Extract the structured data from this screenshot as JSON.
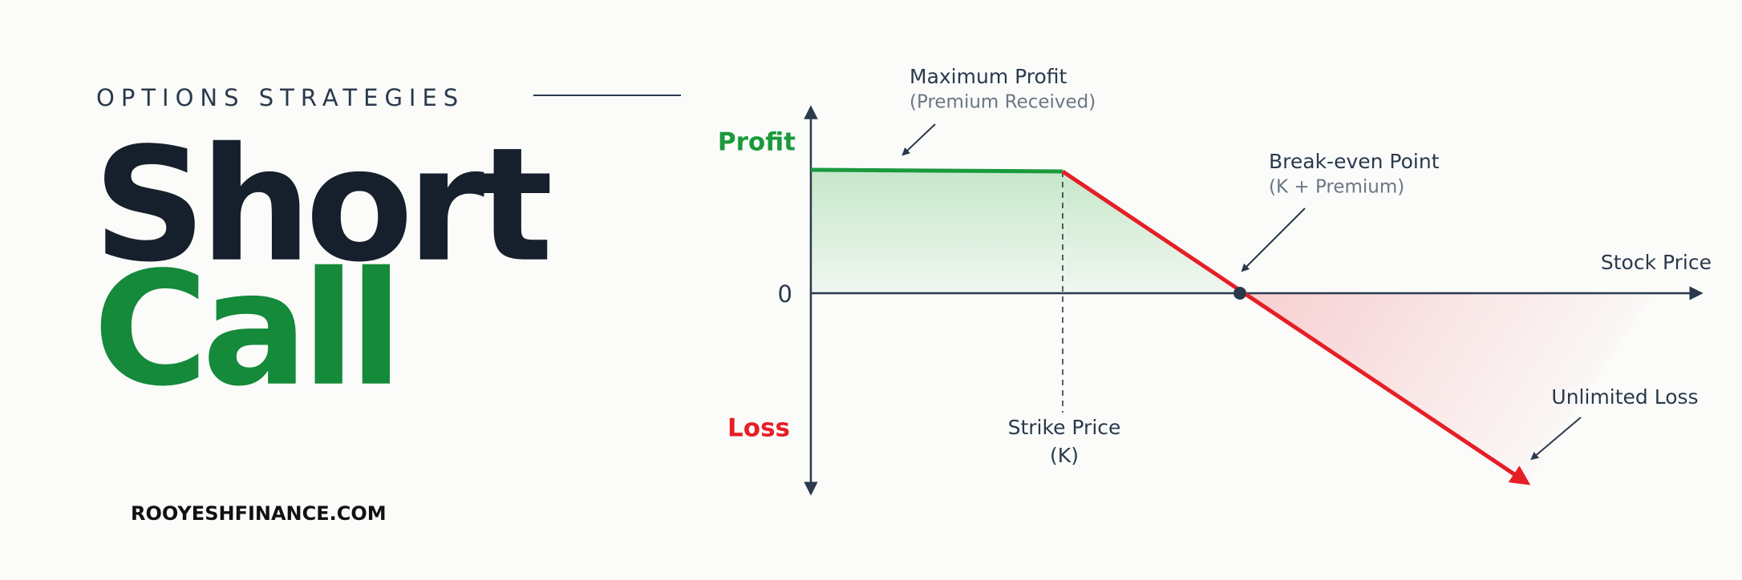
{
  "header": {
    "kicker": "OPTIONS STRATEGIES",
    "title_line1": "Short",
    "title_line2": "Call",
    "site": "ROOYESHFINANCE.COM"
  },
  "diagram": {
    "profit_label": "Profit",
    "zero_label": "0",
    "loss_label": "Loss",
    "x_axis_label": "Stock Price",
    "max_profit": {
      "title": "Maximum Profit",
      "note": "(Premium Received)"
    },
    "break_even": {
      "title": "Break-even Point",
      "note": "(K + Premium)"
    },
    "strike": {
      "title": "Strike Price",
      "note": "(K)"
    },
    "unlimited_loss": "Unlimited Loss"
  }
}
